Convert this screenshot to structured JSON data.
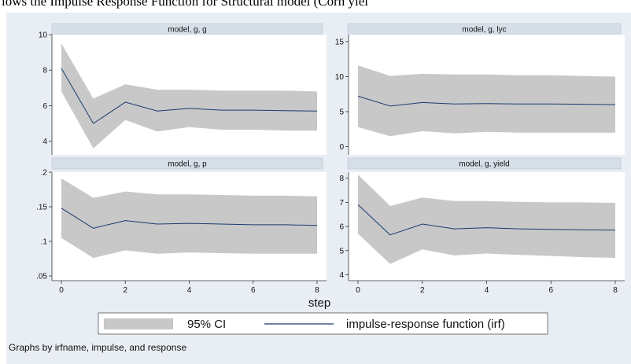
{
  "caption": "lows the Impulse Response Function for Structural model (Corn yiel",
  "chart_data": {
    "type": "area",
    "xlabel": "step",
    "note": "Graphs by irfname, impulse, and response",
    "legend": {
      "ci_label": "95% CI",
      "line_label": "impulse-response function (irf)",
      "placement": "bottom"
    },
    "colors": {
      "band": "#c8c8c8",
      "line": "#1a3c6e",
      "panel_bg": "#ffffff",
      "outer_bg": "#e8eef3"
    },
    "x": [
      0,
      1,
      2,
      3,
      4,
      5,
      6,
      7,
      8
    ],
    "x_ticks": [
      "0",
      "2",
      "4",
      "6",
      "8"
    ],
    "panels": [
      {
        "title": "model, g, g",
        "ylim": [
          3.5,
          10
        ],
        "y_ticks": [
          4,
          6,
          8,
          10
        ],
        "y_tick_labels": [
          "4",
          "6",
          "8",
          "10"
        ],
        "irf": [
          8.1,
          5.0,
          6.2,
          5.7,
          5.85,
          5.75,
          5.75,
          5.72,
          5.7
        ],
        "lower": [
          6.8,
          3.6,
          5.2,
          4.55,
          4.8,
          4.65,
          4.65,
          4.6,
          4.6
        ],
        "upper": [
          9.5,
          6.4,
          7.2,
          6.9,
          6.9,
          6.85,
          6.85,
          6.85,
          6.8
        ]
      },
      {
        "title": "model, g, lyc",
        "ylim": [
          -0.5,
          16
        ],
        "y_ticks": [
          0,
          5,
          10,
          15
        ],
        "y_tick_labels": [
          "0",
          "5",
          "10",
          "15"
        ],
        "irf": [
          7.2,
          5.8,
          6.3,
          6.1,
          6.15,
          6.1,
          6.1,
          6.05,
          6.0
        ],
        "lower": [
          2.8,
          1.5,
          2.2,
          1.9,
          2.1,
          2.0,
          2.0,
          2.0,
          2.0
        ],
        "upper": [
          11.6,
          10.1,
          10.4,
          10.3,
          10.3,
          10.2,
          10.2,
          10.1,
          10.0
        ]
      },
      {
        "title": "model, g, p",
        "ylim": [
          0.05,
          0.2
        ],
        "y_ticks": [
          0.05,
          0.1,
          0.15,
          0.2
        ],
        "y_tick_labels": [
          ".05",
          ".1",
          ".15",
          ".2"
        ],
        "irf": [
          0.148,
          0.119,
          0.13,
          0.125,
          0.126,
          0.125,
          0.124,
          0.124,
          0.123
        ],
        "lower": [
          0.105,
          0.076,
          0.087,
          0.082,
          0.084,
          0.083,
          0.082,
          0.082,
          0.082
        ],
        "upper": [
          0.191,
          0.163,
          0.172,
          0.168,
          0.168,
          0.167,
          0.166,
          0.166,
          0.165
        ]
      },
      {
        "title": "model, g, yield",
        "ylim": [
          3.95,
          8.25
        ],
        "y_ticks": [
          4,
          5,
          6,
          7,
          8
        ],
        "y_tick_labels": [
          "4",
          "5",
          "6",
          "7",
          "8"
        ],
        "irf": [
          6.9,
          5.65,
          6.1,
          5.9,
          5.95,
          5.9,
          5.88,
          5.86,
          5.85
        ],
        "lower": [
          5.7,
          4.45,
          5.05,
          4.8,
          4.88,
          4.82,
          4.78,
          4.73,
          4.7
        ],
        "upper": [
          8.15,
          6.85,
          7.2,
          7.05,
          7.05,
          7.02,
          7.0,
          7.0,
          6.98
        ]
      }
    ]
  }
}
